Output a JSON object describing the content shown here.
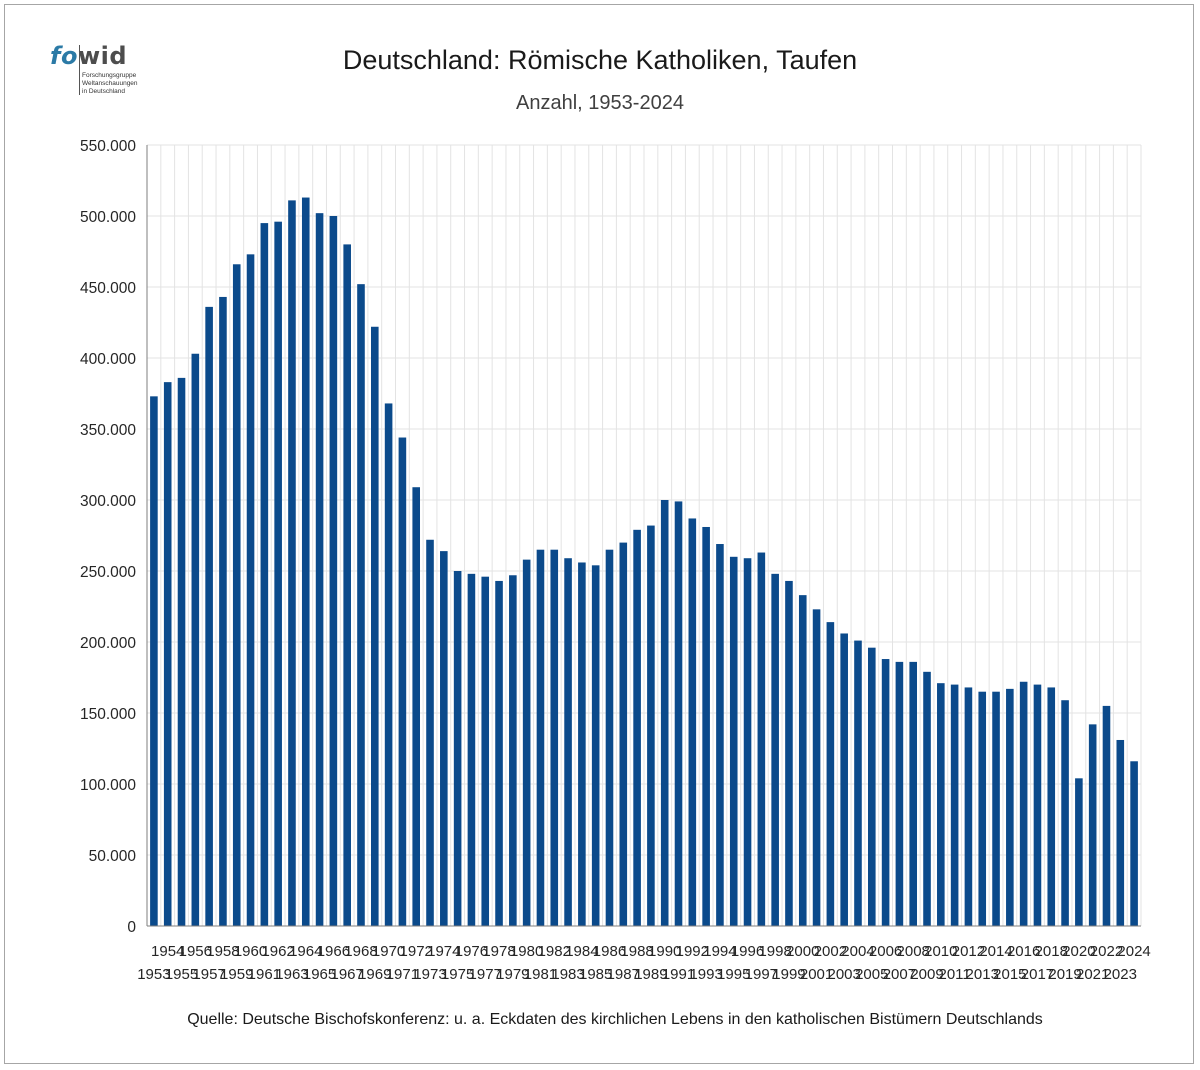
{
  "header": {
    "title": "Deutschland: Römische Katholiken, Taufen",
    "subtitle": "Anzahl, 1953-2024"
  },
  "logo": {
    "word_part1": "fo",
    "word_part2": "wid",
    "tagline": "Forschungsgruppe\nWeltanschauungen\nin Deutschland"
  },
  "footer": {
    "source": "Quelle: Deutsche Bischofskonferenz: u. a.  Eckdaten des kirchlichen Lebens in den katholischen Bistümern Deutschlands"
  },
  "colors": {
    "bar": "#0b4a8b",
    "grid": "#e3e3e3",
    "axis": "#7f7f7f"
  },
  "chart_data": {
    "type": "bar",
    "title": "Deutschland: Römische Katholiken, Taufen",
    "subtitle": "Anzahl, 1953-2024",
    "xlabel": "",
    "ylabel": "",
    "ylim": [
      0,
      550000
    ],
    "y_ticks": [
      0,
      50000,
      100000,
      150000,
      200000,
      250000,
      300000,
      350000,
      400000,
      450000,
      500000,
      550000
    ],
    "y_tick_labels": [
      "0",
      "50.000",
      "100.000",
      "150.000",
      "200.000",
      "250.000",
      "300.000",
      "350.000",
      "400.000",
      "450.000",
      "500.000",
      "550.000"
    ],
    "grid": true,
    "legend": "none",
    "categories": [
      "1953",
      "1954",
      "1955",
      "1956",
      "1957",
      "1958",
      "1959",
      "1960",
      "1961",
      "1962",
      "1963",
      "1964",
      "1965",
      "1966",
      "1967",
      "1968",
      "1969",
      "1970",
      "1971",
      "1972",
      "1973",
      "1974",
      "1975",
      "1976",
      "1977",
      "1978",
      "1979",
      "1980",
      "1981",
      "1982",
      "1983",
      "1984",
      "1985",
      "1986",
      "1987",
      "1988",
      "1989",
      "1990",
      "1991",
      "1992",
      "1993",
      "1994",
      "1995",
      "1996",
      "1997",
      "1998",
      "1999",
      "2000",
      "2001",
      "2002",
      "2003",
      "2004",
      "2005",
      "2006",
      "2007",
      "2008",
      "2009",
      "2010",
      "2011",
      "2012",
      "2013",
      "2014",
      "2015",
      "2016",
      "2017",
      "2018",
      "2019",
      "2020",
      "2021",
      "2022",
      "2023",
      "2024"
    ],
    "values": [
      373000,
      383000,
      386000,
      403000,
      436000,
      443000,
      466000,
      473000,
      495000,
      496000,
      511000,
      513000,
      502000,
      500000,
      480000,
      452000,
      422000,
      368000,
      344000,
      309000,
      272000,
      264000,
      250000,
      248000,
      246000,
      243000,
      247000,
      258000,
      265000,
      265000,
      259000,
      256000,
      254000,
      265000,
      270000,
      279000,
      282000,
      300000,
      299000,
      287000,
      281000,
      269000,
      260000,
      259000,
      263000,
      248000,
      243000,
      233000,
      223000,
      214000,
      206000,
      201000,
      196000,
      188000,
      186000,
      186000,
      179000,
      171000,
      170000,
      168000,
      165000,
      165000,
      167000,
      172000,
      170000,
      168000,
      159000,
      104000,
      142000,
      155000,
      131000,
      116000
    ]
  }
}
